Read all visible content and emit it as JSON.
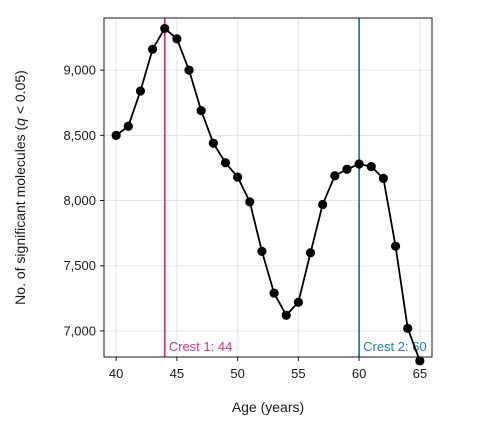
{
  "chart_data": {
    "type": "line",
    "xlabel": "Age (years)",
    "ylabel_prefix": "No. of significant molecules (",
    "ylabel_italic": "q",
    "ylabel_suffix": " < 0.05)",
    "xlim": [
      39,
      66
    ],
    "ylim": [
      6800,
      9400
    ],
    "xticks": [
      40,
      45,
      50,
      55,
      60,
      65
    ],
    "yticks": [
      7000,
      7500,
      8000,
      8500,
      9000
    ],
    "ytick_labels": [
      "7,000",
      "7,500",
      "8,000",
      "8,500",
      "9,000"
    ],
    "grid": true,
    "series": [
      {
        "x": [
          40,
          41,
          42,
          43,
          44,
          45,
          46,
          47,
          48,
          49,
          50,
          51,
          52,
          53,
          54,
          55,
          56,
          57,
          58,
          59,
          60,
          61,
          62,
          63,
          64,
          65
        ],
        "y": [
          8500,
          8570,
          8840,
          9160,
          9320,
          9240,
          9000,
          8690,
          8440,
          8290,
          8180,
          7990,
          7610,
          7290,
          7120,
          7220,
          7600,
          7970,
          8190,
          8240,
          8280,
          8260,
          8170,
          7650,
          7020,
          6770
        ],
        "color": "#000000"
      }
    ],
    "annotations": [
      {
        "x": 44,
        "label": "Crest 1: 44",
        "color": "#d6338a"
      },
      {
        "x": 60,
        "label": "Crest 2: 60",
        "color": "#1f80a8"
      }
    ]
  }
}
